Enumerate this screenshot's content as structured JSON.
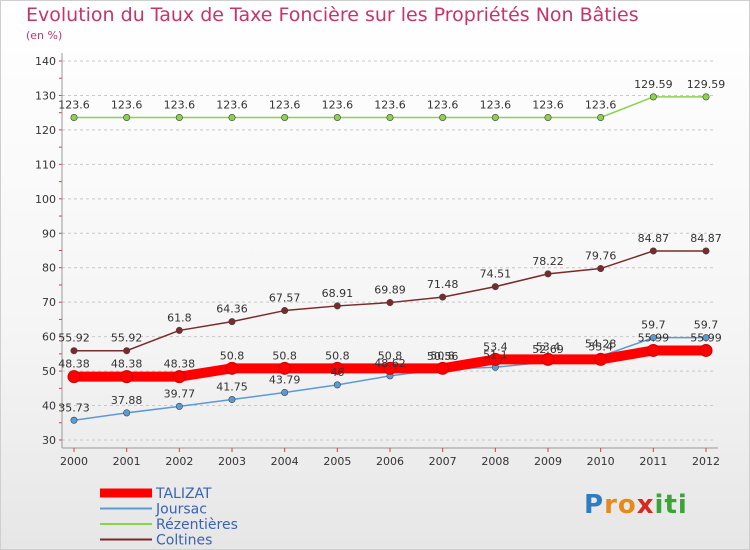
{
  "chart_data": {
    "type": "line",
    "title": "Evolution du Taux de Taxe Foncière sur les Propriétés Non Bâties",
    "subtitle": "(en %)",
    "x": [
      "2000",
      "2001",
      "2002",
      "2003",
      "2004",
      "2005",
      "2006",
      "2007",
      "2008",
      "2009",
      "2010",
      "2011",
      "2012"
    ],
    "ylim": [
      30,
      140
    ],
    "yticks": [
      30,
      40,
      50,
      60,
      70,
      80,
      90,
      100,
      110,
      120,
      130,
      140
    ],
    "grid": "horizontal-dashed",
    "legend_position": "bottom-left",
    "series": [
      {
        "name": "TALIZAT",
        "color": "#ff0000",
        "values": [
          48.38,
          48.38,
          48.38,
          50.8,
          50.8,
          50.8,
          50.8,
          50.8,
          53.4,
          53.4,
          53.4,
          55.99,
          55.99
        ],
        "labels": [
          "48.38",
          "48.38",
          "48.38",
          "50.8",
          "50.8",
          "50.8",
          "50.8",
          "50.8",
          "53.4",
          "53.4",
          "53.4",
          "55.99",
          "55.99"
        ]
      },
      {
        "name": "Joursac",
        "color": "#5b9bd5",
        "values": [
          35.73,
          37.88,
          39.77,
          41.75,
          43.79,
          46,
          48.62,
          50.56,
          51.1,
          52.69,
          54.28,
          59.7,
          59.7
        ],
        "labels": [
          "35.73",
          "37.88",
          "39.77",
          "41.75",
          "43.79",
          "46",
          "48.62",
          "50.56",
          "51.1",
          "52.69",
          "54.28",
          "59.7",
          "59.7"
        ]
      },
      {
        "name": "Rézentières",
        "color": "#8bd34b",
        "values": [
          123.6,
          123.6,
          123.6,
          123.6,
          123.6,
          123.6,
          123.6,
          123.6,
          123.6,
          123.6,
          123.6,
          129.59,
          129.59
        ],
        "labels": [
          "123.6",
          "123.6",
          "123.6",
          "123.6",
          "123.6",
          "123.6",
          "123.6",
          "123.6",
          "123.6",
          "123.6",
          "123.6",
          "129.59",
          "129.59"
        ]
      },
      {
        "name": "Coltines",
        "color": "#7a2a2a",
        "values": [
          55.92,
          55.92,
          61.8,
          64.36,
          67.57,
          68.91,
          69.89,
          71.48,
          74.51,
          78.22,
          79.76,
          84.87,
          84.87
        ],
        "labels": [
          "55.92",
          "55.92",
          "61.8",
          "64.36",
          "67.57",
          "68.91",
          "69.89",
          "71.48",
          "74.51",
          "78.22",
          "79.76",
          "84.87",
          "84.87"
        ]
      }
    ]
  },
  "logo": {
    "letters": [
      "P",
      "r",
      "o",
      "x",
      "i",
      "t",
      "i"
    ],
    "colors": [
      "#2f7dc1",
      "#e58b1c",
      "#e58b1c",
      "#d7291f",
      "#3aa535",
      "#3aa535",
      "#3aa535"
    ]
  }
}
